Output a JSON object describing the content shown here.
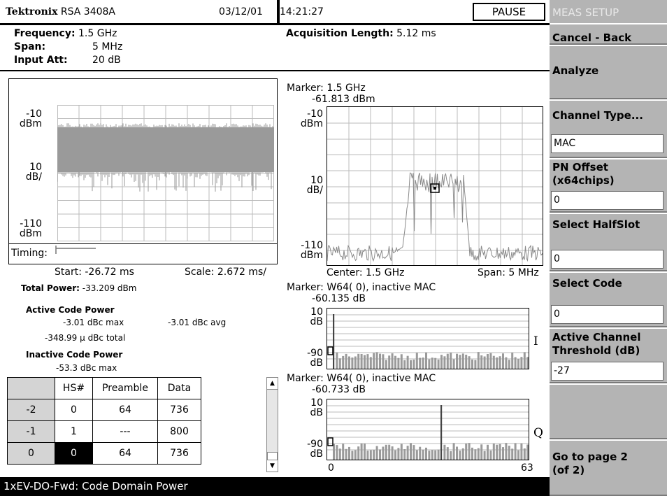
{
  "header": {
    "brand": "Tektronix",
    "model": "RSA 3408A",
    "date": "03/12/01",
    "time": "14:21:27",
    "pause_label": "PAUSE"
  },
  "settings": {
    "frequency_label": "Frequency:",
    "frequency_value": "1.5 GHz",
    "span_label": "Span:",
    "span_value": "5 MHz",
    "input_att_label": "Input Att:",
    "input_att_value": "20 dB",
    "acq_label": "Acquisition Length:",
    "acq_value": "5.12 ms"
  },
  "left_chart": {
    "y_top": "-10",
    "y_top_unit": "dBm",
    "y_mid": "10",
    "y_mid_unit": "dB/",
    "y_bot": "-110",
    "y_bot_unit": "dBm",
    "timing_label": "Timing:",
    "start": "Start: -26.72 ms",
    "scale": "Scale: 2.672 ms/"
  },
  "stats": {
    "total_power_label": "Total Power:",
    "total_power_value": "-33.209 dBm",
    "active_title": "Active Code Power",
    "active_max": "-3.01  dBc max",
    "active_avg": "-3.01  dBc avg",
    "active_total": "-348.99 µ dBc total",
    "inactive_title": "Inactive Code Power",
    "inactive_max": "-53.3   dBc max"
  },
  "table": {
    "headers": [
      "HS#",
      "Preamble",
      "Data"
    ],
    "rows": [
      {
        "label": "-2",
        "hs": "0",
        "preamble": "64",
        "data": "736"
      },
      {
        "label": "-1",
        "hs": "1",
        "preamble": "---",
        "data": "800"
      },
      {
        "label": "0",
        "hs": "0",
        "preamble": "64",
        "data": "736"
      }
    ]
  },
  "spectrum": {
    "marker": "Marker: 1.5 GHz",
    "marker_value": "-61.813 dBm",
    "y_top": "-10",
    "y_top_unit": "dBm",
    "y_mid": "10",
    "y_mid_unit": "dB/",
    "y_bot": "-110",
    "y_bot_unit": "dBm",
    "center": "Center: 1.5 GHz",
    "span": "Span: 5 MHz"
  },
  "code_i": {
    "marker": "Marker:  W64( 0),  inactive        MAC",
    "marker_value": "-60.135 dB",
    "y_top": "10",
    "y_top_unit": "dB",
    "y_bot": "-90",
    "y_bot_unit": "dB",
    "channel": "I"
  },
  "code_q": {
    "marker": "Marker:  W64( 0),  inactive        MAC",
    "marker_value": "-60.733 dB",
    "y_top": "10",
    "y_top_unit": "dB",
    "y_bot": "-90",
    "y_bot_unit": "dB",
    "channel": "Q",
    "x_min": "0",
    "x_max": "63"
  },
  "status": {
    "text": "1xEV-DO-Fwd: Code Domain Power"
  },
  "menu": {
    "title": "MEAS SETUP",
    "cancel": "Cancel - Back",
    "analyze": "Analyze",
    "channel_type": "Channel Type...",
    "channel_type_value": "MAC",
    "pn_offset": "PN Offset",
    "pn_offset_unit": "(x64chips)",
    "pn_offset_value": "0",
    "select_halfslot": "Select HalfSlot",
    "select_halfslot_value": "0",
    "select_code": "Select Code",
    "select_code_value": "0",
    "active_threshold": "Active Channel",
    "active_threshold_unit": "Threshold (dB)",
    "active_threshold_value": "-27",
    "goto_page": "Go to page 2",
    "goto_page_sub": "(of 2)"
  }
}
